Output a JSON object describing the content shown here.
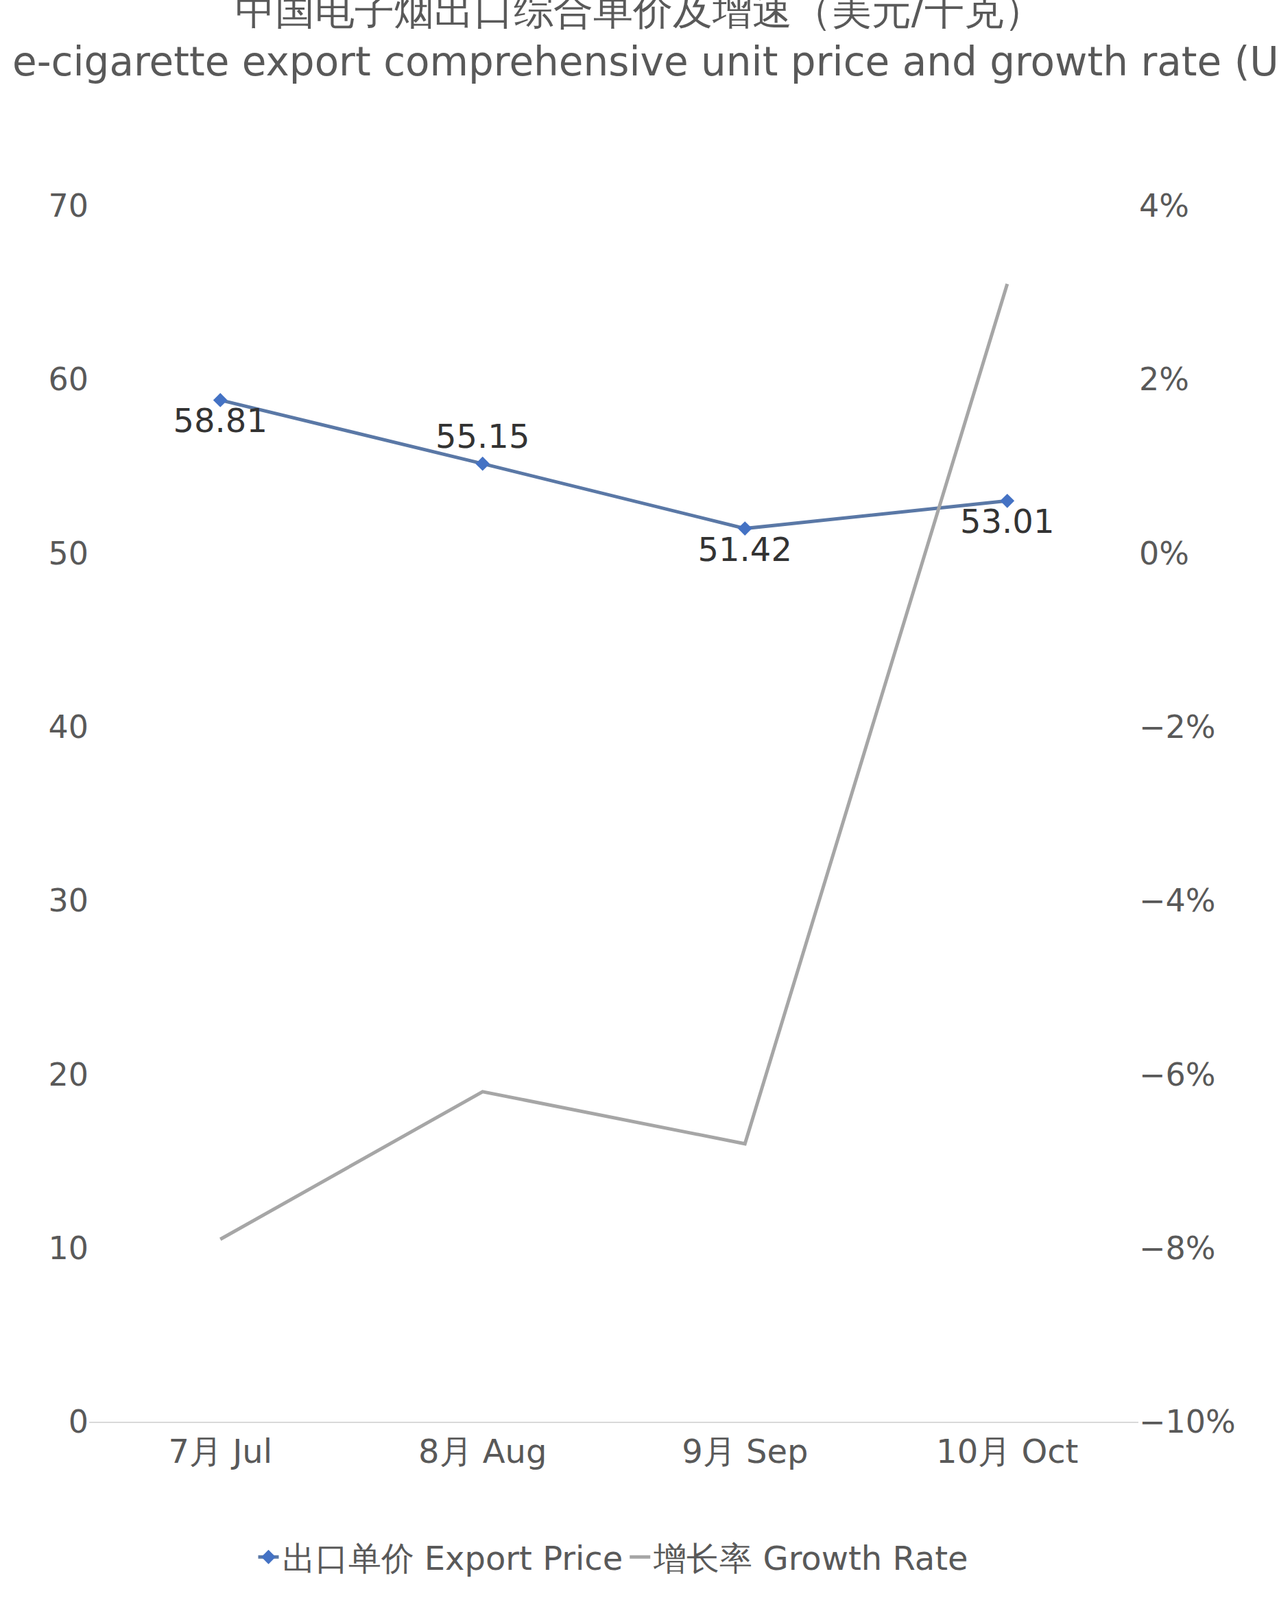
{
  "chart_data": {
    "type": "line",
    "title": "中国电子烟出口综合单价及增速（美元/千克）",
    "subtitle": "China's e-cigarette export comprehensive unit price and growth rate (USD/kg )",
    "categories": [
      "7月 Jul",
      "8月 Aug",
      "9月 Sep",
      "10月 Oct"
    ],
    "series": [
      {
        "name": "出口单价 Export Price",
        "color": "#5a78a6",
        "marker": "diamond",
        "data_labels": true,
        "values": [
          58.81,
          55.15,
          51.42,
          53.01
        ]
      },
      {
        "name": "增长率 Growth Rate",
        "color": "#a6a6a6",
        "axis": "y2",
        "marker": "none",
        "values": [
          -7.9,
          -6.2,
          -6.8,
          3.1
        ]
      }
    ],
    "ylim": [
      0,
      70
    ],
    "yticks": [
      0,
      10,
      20,
      30,
      40,
      50,
      60,
      70
    ],
    "y2lim": [
      -10,
      4
    ],
    "y2ticks": [
      {
        "value": -10,
        "label": "−10%"
      },
      {
        "value": -8,
        "label": "−8%"
      },
      {
        "value": -6,
        "label": "−6%"
      },
      {
        "value": -4,
        "label": "−4%"
      },
      {
        "value": -2,
        "label": "−2%"
      },
      {
        "value": 0,
        "label": "0%"
      },
      {
        "value": 2,
        "label": "2%"
      },
      {
        "value": 4,
        "label": "4%"
      }
    ],
    "grid": false,
    "legend": "bottom"
  }
}
